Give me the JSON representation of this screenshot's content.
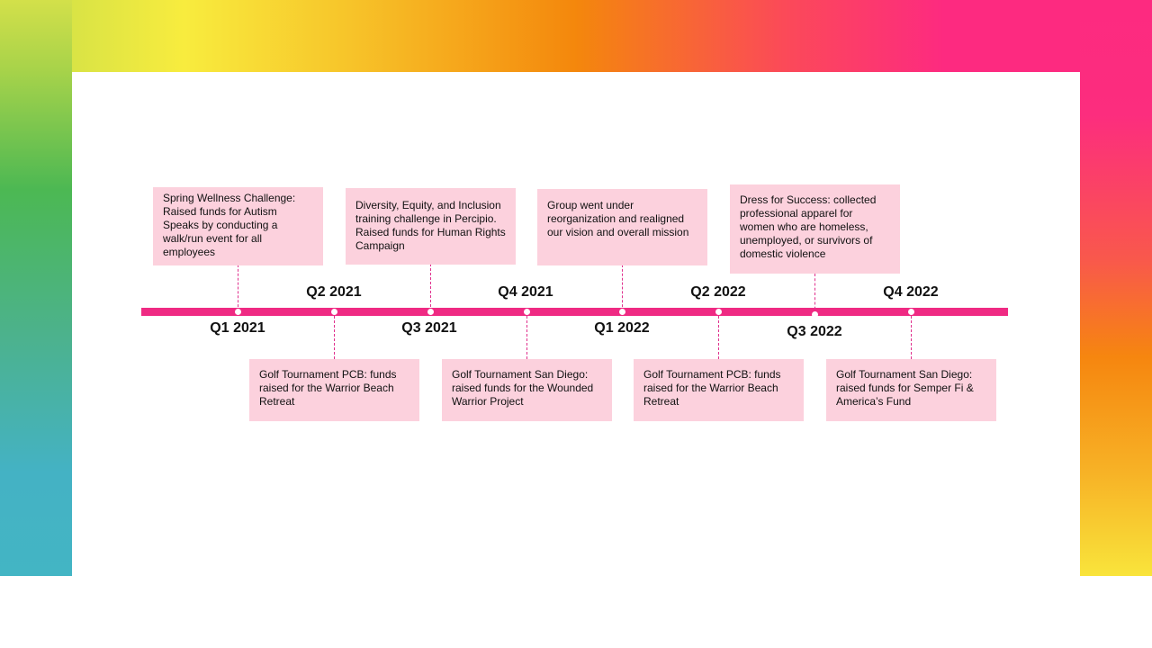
{
  "colors": {
    "accent": "#ef2a83",
    "card_fill": "#fcd1dd",
    "connector": "#e0308d"
  },
  "timeline": {
    "events": [
      {
        "quarter": "Q1 2021",
        "position": "above",
        "text": "Spring Wellness Challenge: Raised funds for Autism Speaks by conducting  a walk/run event for all employees"
      },
      {
        "quarter": "Q2 2021",
        "position": "below",
        "text": "Golf Tournament PCB: funds raised for the Warrior Beach Retreat"
      },
      {
        "quarter": "Q3 2021",
        "position": "above",
        "text": "Diversity, Equity, and Inclusion  training challenge in Percipio. Raised funds for Human Rights Campaign"
      },
      {
        "quarter": "Q4 2021",
        "position": "below",
        "text": "Golf Tournament San Diego: raised funds for the Wounded Warrior Project"
      },
      {
        "quarter": "Q1 2022",
        "position": "above",
        "text": "Group went under reorganization and realigned our vision  and overall mission"
      },
      {
        "quarter": "Q2 2022",
        "position": "below",
        "text": "Golf Tournament PCB: funds raised for the Warrior Beach Retreat"
      },
      {
        "quarter": "Q3 2022",
        "position": "above",
        "text": "Dress for Success: collected professional  apparel for women who are homeless, unemployed, or survivors of domestic violence"
      },
      {
        "quarter": "Q4 2022",
        "position": "below",
        "text": "Golf Tournament San Diego: raised funds for Semper Fi & America’s Fund"
      }
    ]
  }
}
